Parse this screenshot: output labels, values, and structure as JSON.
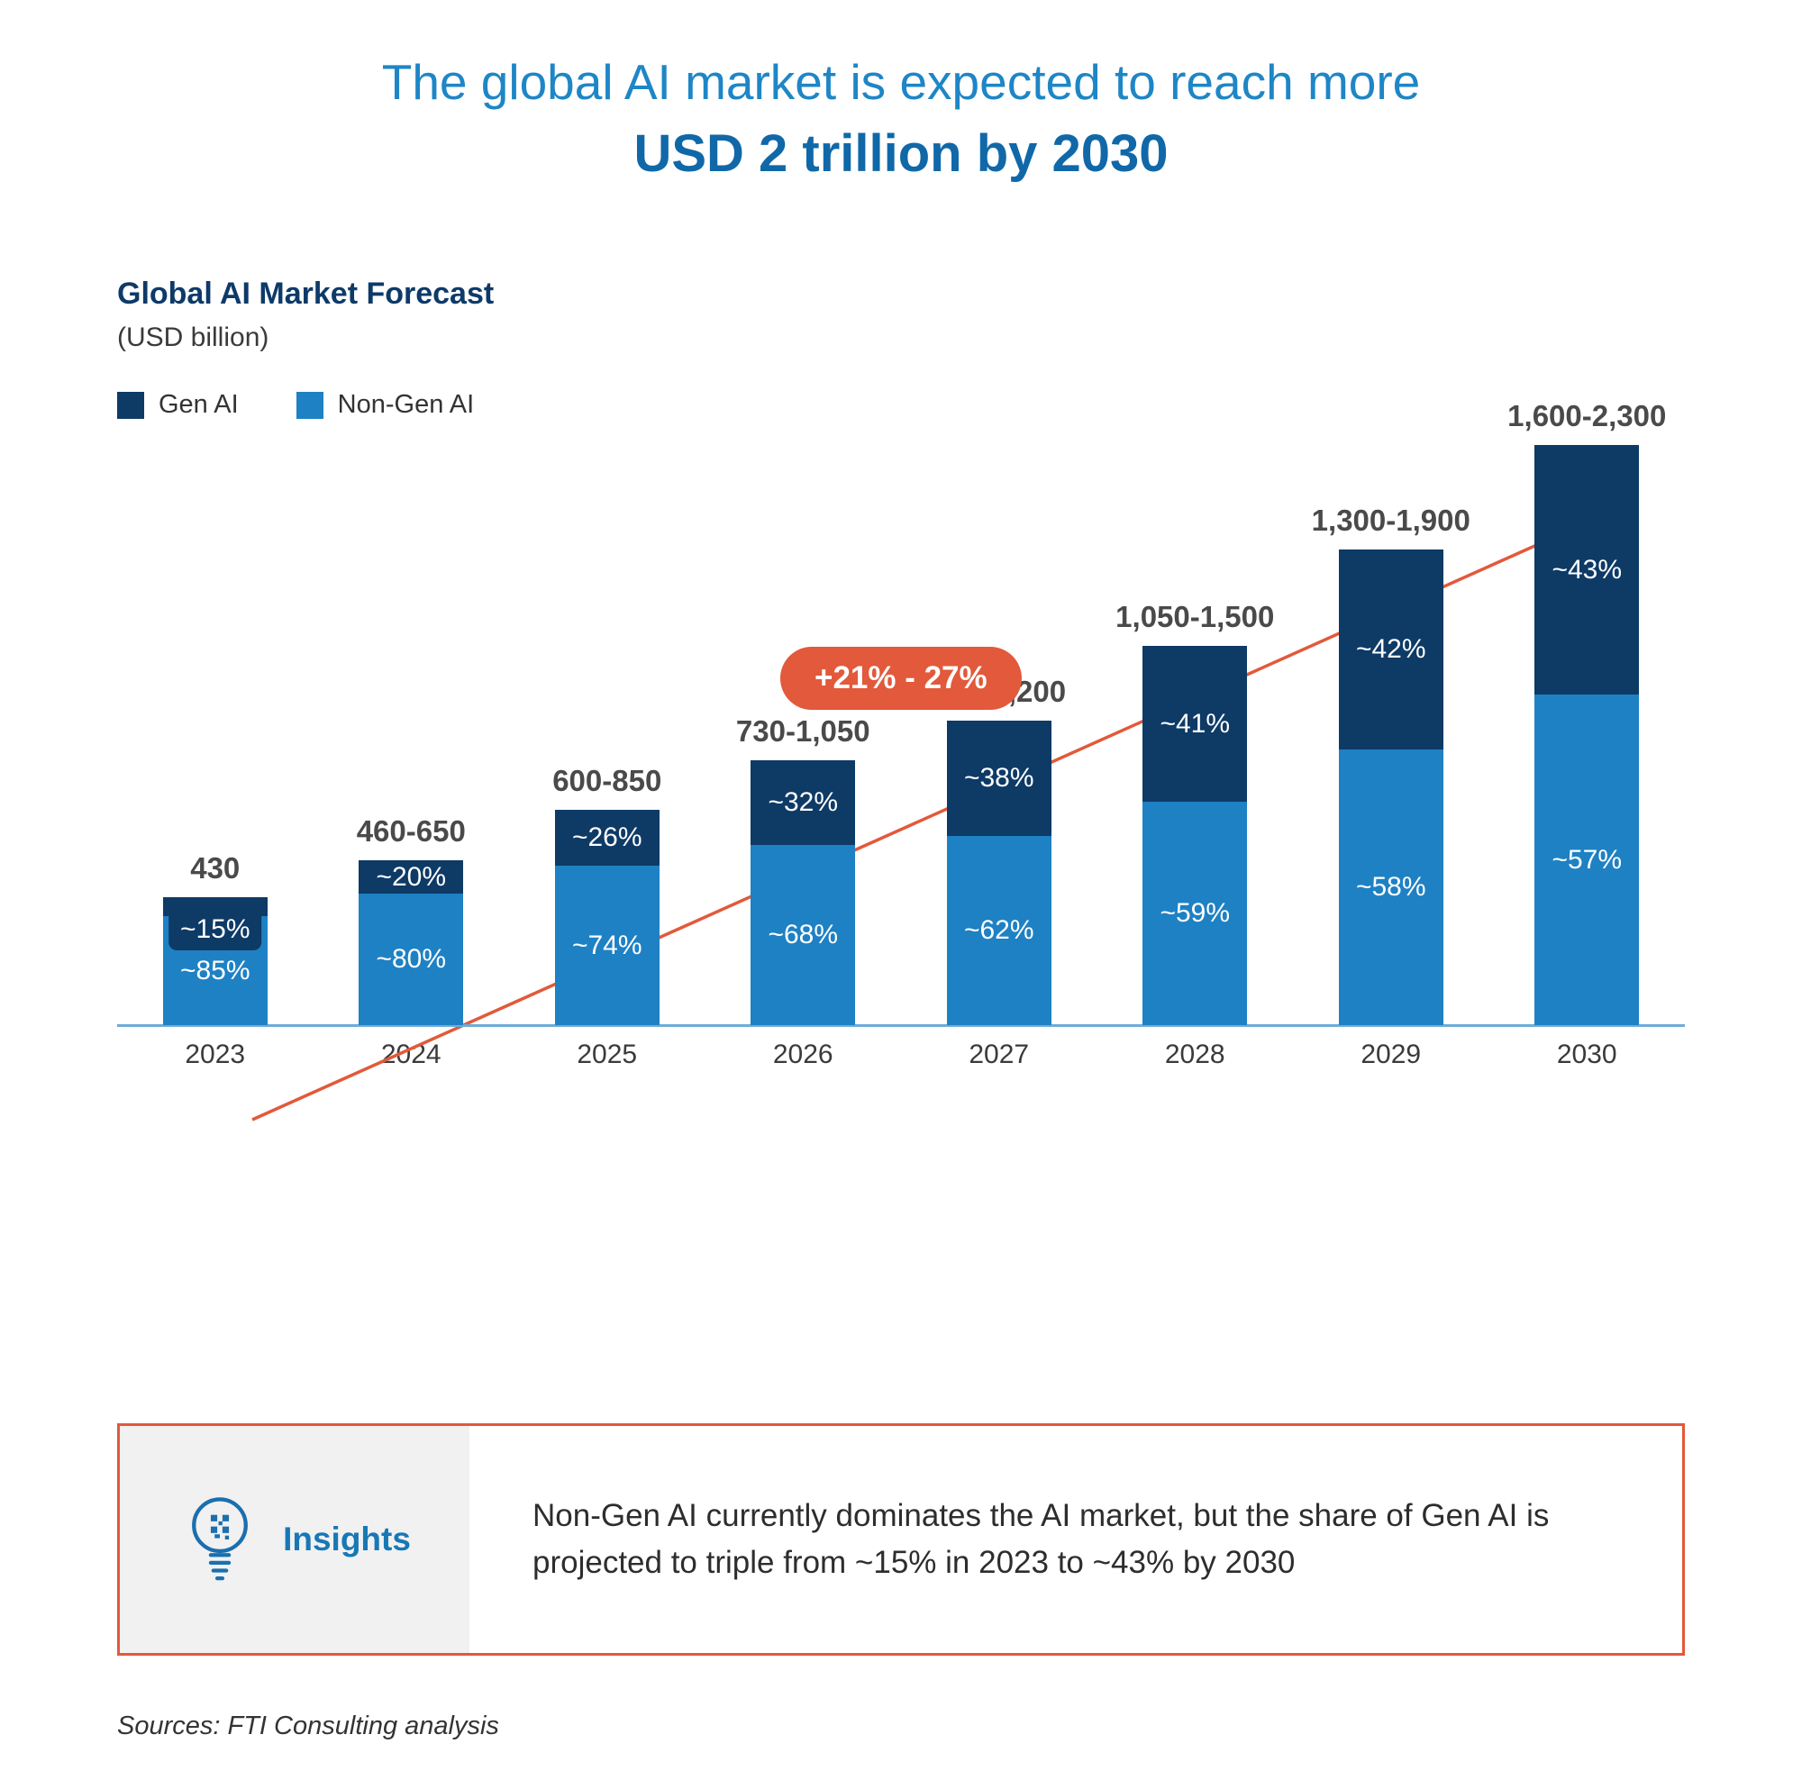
{
  "header": {
    "title_line1": "The global AI market is expected to reach more",
    "title_line2": "USD 2 trillion by 2030"
  },
  "chart": {
    "title": "Global AI Market Forecast",
    "subtitle": "(USD billion)",
    "legend": [
      {
        "label": "Gen AI",
        "color": "#0e3a66"
      },
      {
        "label": "Non-Gen AI",
        "color": "#1e81c4"
      }
    ],
    "growth_label": "+21% - 27%"
  },
  "chart_data": {
    "type": "stacked-bar",
    "title": "Global AI Market Forecast",
    "unit": "USD billion",
    "categories": [
      "2023",
      "2024",
      "2025",
      "2026",
      "2027",
      "2028",
      "2029",
      "2030"
    ],
    "growth_annotation": "+21% - 27%",
    "series_names": [
      "Gen AI",
      "Non-Gen AI"
    ],
    "bars": [
      {
        "year": "2023",
        "total_label": "430",
        "total_mid": 430,
        "gen_pct": 15,
        "gen_label": "~15%",
        "non_gen_pct": 85,
        "non_gen_label": "~85%"
      },
      {
        "year": "2024",
        "total_label": "460-650",
        "total_mid": 555,
        "gen_pct": 20,
        "gen_label": "~20%",
        "non_gen_pct": 80,
        "non_gen_label": "~80%"
      },
      {
        "year": "2025",
        "total_label": "600-850",
        "total_mid": 725,
        "gen_pct": 26,
        "gen_label": "~26%",
        "non_gen_pct": 74,
        "non_gen_label": "~74%"
      },
      {
        "year": "2026",
        "total_label": "730-1,050",
        "total_mid": 890,
        "gen_pct": 32,
        "gen_label": "~32%",
        "non_gen_pct": 68,
        "non_gen_label": "~68%"
      },
      {
        "year": "2027",
        "total_label": "850-1,200",
        "total_mid": 1025,
        "gen_pct": 38,
        "gen_label": "~38%",
        "non_gen_pct": 62,
        "non_gen_label": "~62%"
      },
      {
        "year": "2028",
        "total_label": "1,050-1,500",
        "total_mid": 1275,
        "gen_pct": 41,
        "gen_label": "~41%",
        "non_gen_pct": 59,
        "non_gen_label": "~59%"
      },
      {
        "year": "2029",
        "total_label": "1,300-1,900",
        "total_mid": 1600,
        "gen_pct": 42,
        "gen_label": "~42%",
        "non_gen_pct": 58,
        "non_gen_label": "~58%"
      },
      {
        "year": "2030",
        "total_label": "1,600-2,300",
        "total_mid": 1950,
        "gen_pct": 43,
        "gen_label": "~43%",
        "non_gen_pct": 57,
        "non_gen_label": "~57%"
      }
    ],
    "ylim": [
      0,
      1950
    ],
    "grid": false,
    "legend_position": "top-left"
  },
  "insights": {
    "label": "Insights",
    "text": "Non-Gen AI currently dominates the AI market, but the share of Gen AI is projected to triple from ~15% in 2023 to ~43% by 2030"
  },
  "footer": {
    "sources": "Sources: FTI Consulting analysis"
  }
}
